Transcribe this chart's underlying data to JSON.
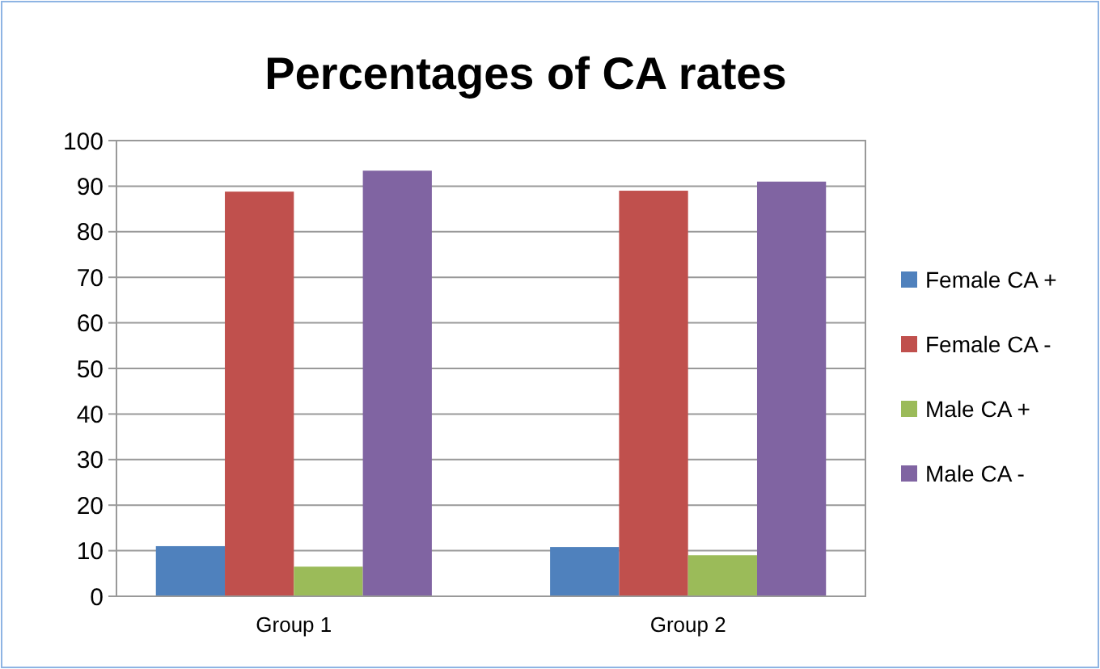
{
  "chart_data": {
    "type": "bar",
    "title": "Percentages of CA rates",
    "categories": [
      "Group 1",
      "Group 2"
    ],
    "series": [
      {
        "name": "Female CA +",
        "color": "#4f81bd",
        "values": [
          11,
          10.8
        ]
      },
      {
        "name": "Female CA -",
        "color": "#c0504d",
        "values": [
          88.8,
          89
        ]
      },
      {
        "name": "Male CA +",
        "color": "#9bbb59",
        "values": [
          6.5,
          9
        ]
      },
      {
        "name": "Male CA -",
        "color": "#8064a2",
        "values": [
          93.4,
          91
        ]
      }
    ],
    "ylim": [
      0,
      100
    ],
    "yticks": [
      0,
      10,
      20,
      30,
      40,
      50,
      60,
      70,
      80,
      90,
      100
    ],
    "grid": "y",
    "legend": "right"
  }
}
